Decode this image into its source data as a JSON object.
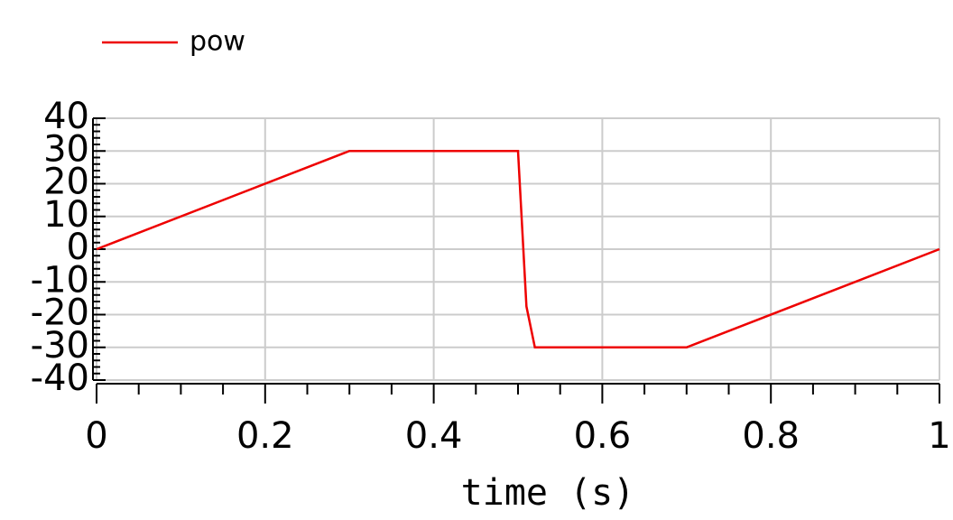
{
  "chart_data": {
    "type": "line",
    "x": [
      0,
      0.3,
      0.5,
      0.51,
      0.52,
      0.7,
      1
    ],
    "series": [
      {
        "name": "pow",
        "color": "#ee0000",
        "values": [
          0,
          30,
          30,
          -17.5,
          -30,
          -30,
          0
        ]
      }
    ],
    "xlabel": "time (s)",
    "xlim": [
      0,
      1
    ],
    "xticks": [
      0,
      0.2,
      0.4,
      0.6,
      0.8,
      1
    ],
    "ylim": [
      -40,
      40
    ],
    "yticks": [
      -40,
      -30,
      -20,
      -10,
      0,
      10,
      20,
      30,
      40
    ],
    "grid": true,
    "legend": "top-left"
  }
}
